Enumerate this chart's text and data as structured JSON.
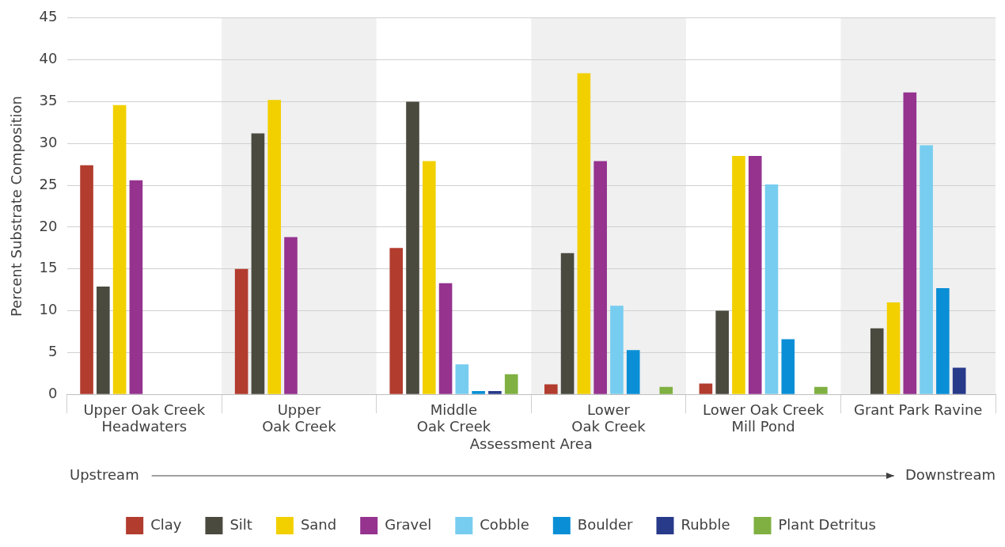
{
  "chart_data": {
    "type": "bar",
    "xlabel": "Assessment Area",
    "ylabel": "Percent Substrate Composition",
    "categories": [
      "Upper Oak Creek\nHeadwaters",
      "Upper\nOak Creek",
      "Middle\nOak Creek",
      "Lower\nOak Creek",
      "Lower Oak Creek\nMill Pond",
      "Grant Park Ravine"
    ],
    "series": [
      {
        "name": "Clay",
        "color": "#b23c2e",
        "values": [
          27.4,
          15.0,
          17.5,
          1.2,
          1.3,
          null
        ]
      },
      {
        "name": "Silt",
        "color": "#4b4a3f",
        "values": [
          12.9,
          31.2,
          35.0,
          16.9,
          10.0,
          7.9
        ]
      },
      {
        "name": "Sand",
        "color": "#f2d000",
        "values": [
          34.6,
          35.2,
          27.9,
          38.4,
          28.5,
          11.0
        ]
      },
      {
        "name": "Gravel",
        "color": "#95338f",
        "values": [
          25.6,
          18.8,
          13.3,
          27.9,
          28.5,
          36.1
        ]
      },
      {
        "name": "Cobble",
        "color": "#77cdf0",
        "values": [
          null,
          null,
          3.6,
          10.6,
          25.1,
          29.8
        ]
      },
      {
        "name": "Boulder",
        "color": "#0a8fd6",
        "values": [
          null,
          null,
          0.4,
          5.3,
          6.6,
          12.7
        ]
      },
      {
        "name": "Rubble",
        "color": "#283a8a",
        "values": [
          null,
          null,
          0.4,
          null,
          null,
          3.2
        ]
      },
      {
        "name": "Plant Detritus",
        "color": "#7fb041",
        "values": [
          null,
          null,
          2.4,
          0.9,
          0.9,
          null
        ]
      }
    ],
    "ylim": [
      0,
      45
    ],
    "yticks": [
      0,
      5,
      10,
      15,
      20,
      25,
      30,
      35,
      40,
      45
    ],
    "grid": "y",
    "legend": "bottom",
    "bands": [
      {
        "axis": "x",
        "from": "Upper\nOak Creek",
        "to": "Upper\nOak Creek",
        "color": "#f0f0f0"
      },
      {
        "axis": "x",
        "from": "Lower\nOak Creek",
        "to": "Lower\nOak Creek",
        "color": "#f0f0f0"
      },
      {
        "axis": "x",
        "from": "Grant Park Ravine",
        "to": "Grant Park Ravine",
        "color": "#f0f0f0"
      }
    ],
    "annotations": [
      "Upstream",
      "Downstream"
    ]
  }
}
